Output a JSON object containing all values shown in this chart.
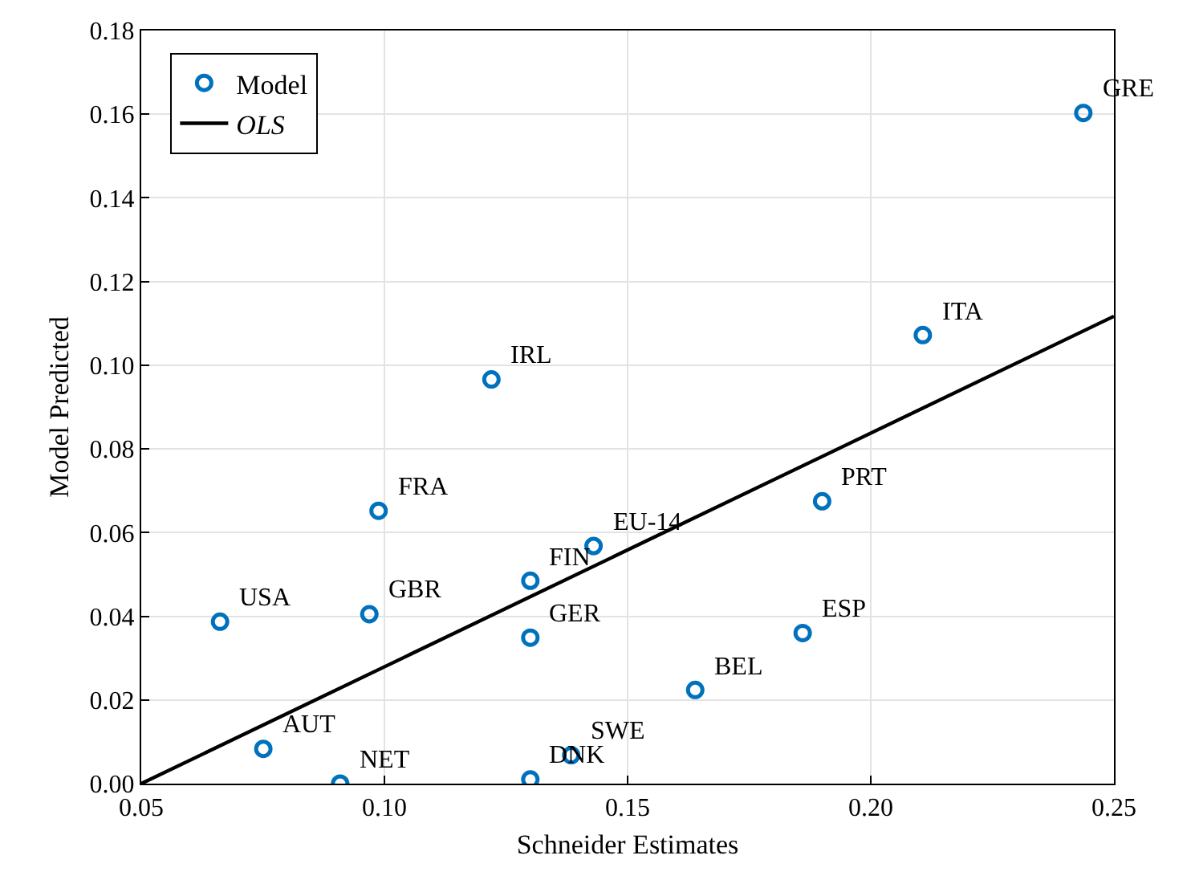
{
  "chart_data": {
    "type": "scatter",
    "xlabel": "Schneider Estimates",
    "ylabel": "Model Predicted",
    "xlim": [
      0.05,
      0.25
    ],
    "ylim": [
      0,
      0.18
    ],
    "xticks": [
      {
        "value": 0.05,
        "label": "0.05"
      },
      {
        "value": 0.1,
        "label": "0.10"
      },
      {
        "value": 0.15,
        "label": "0.15"
      },
      {
        "value": 0.2,
        "label": "0.20"
      },
      {
        "value": 0.25,
        "label": "0.25"
      }
    ],
    "yticks": [
      {
        "value": 0,
        "label": "0.00"
      },
      {
        "value": 0.02,
        "label": "0.02"
      },
      {
        "value": 0.04,
        "label": "0.04"
      },
      {
        "value": 0.06,
        "label": "0.06"
      },
      {
        "value": 0.08,
        "label": "0.08"
      },
      {
        "value": 0.1,
        "label": "0.10"
      },
      {
        "value": 0.12,
        "label": "0.12"
      },
      {
        "value": 0.14,
        "label": "0.14"
      },
      {
        "value": 0.16,
        "label": "0.16"
      },
      {
        "value": 0.18,
        "label": "0.18"
      }
    ],
    "grid": true,
    "legend": "top left",
    "series": [
      {
        "name": "Model",
        "marker": "circle",
        "color": "#0072bd",
        "x": [
          0.2437,
          0.2107,
          0.19,
          0.186,
          0.1639,
          0.143,
          0.13,
          0.13,
          0.1384,
          0.13,
          0.122,
          0.0988,
          0.0969,
          0.0662,
          0.0751,
          0.0909
        ],
        "values": [
          0.1603,
          0.1072,
          0.0675,
          0.036,
          0.0224,
          0.0568,
          0.0485,
          0.0349,
          0.0068,
          0.001,
          0.0966,
          0.0652,
          0.0405,
          0.0387,
          0.0083,
          0
        ]
      },
      {
        "name": "OLS",
        "type": "line",
        "color": "#000000",
        "line_style": "solid",
        "x": [
          0.05,
          0.25
        ],
        "values": [
          0,
          0.1117
        ]
      }
    ],
    "annotations": [
      {
        "text": "GRE",
        "x": 0.2437,
        "y": 0.1603
      },
      {
        "text": "ITA",
        "x": 0.2107,
        "y": 0.1072
      },
      {
        "text": "PRT",
        "x": 0.19,
        "y": 0.0675
      },
      {
        "text": "ESP",
        "x": 0.186,
        "y": 0.036
      },
      {
        "text": "BEL",
        "x": 0.1639,
        "y": 0.0224
      },
      {
        "text": "EU-14",
        "x": 0.143,
        "y": 0.0568
      },
      {
        "text": "FIN",
        "x": 0.13,
        "y": 0.0485
      },
      {
        "text": "GER",
        "x": 0.13,
        "y": 0.0349
      },
      {
        "text": "SWE",
        "x": 0.1384,
        "y": 0.0068
      },
      {
        "text": "DNK",
        "x": 0.13,
        "y": 0.001
      },
      {
        "text": "IRL",
        "x": 0.122,
        "y": 0.0966
      },
      {
        "text": "FRA",
        "x": 0.0988,
        "y": 0.0652
      },
      {
        "text": "GBR",
        "x": 0.0969,
        "y": 0.0405
      },
      {
        "text": "USA",
        "x": 0.0662,
        "y": 0.0387
      },
      {
        "text": "AUT",
        "x": 0.0751,
        "y": 0.0083
      },
      {
        "text": "NET",
        "x": 0.0909,
        "y": 0
      }
    ]
  }
}
